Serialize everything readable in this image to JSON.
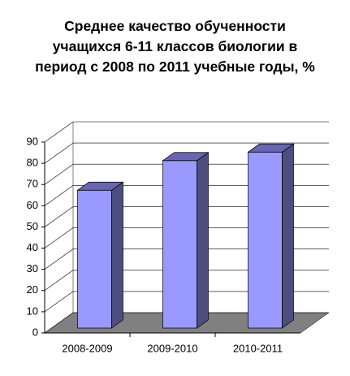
{
  "chart_data": {
    "type": "bar3d",
    "title": "Среднее качество обученности учащихся 6-11 классов биологии в период с 2008 по 2011 учебные годы, %",
    "categories": [
      "2008-2009",
      "2009-2010",
      "2010-2011"
    ],
    "values": [
      65,
      79,
      83
    ],
    "color": "#9999ff",
    "ylim": [
      0,
      90
    ],
    "yticks": [
      0,
      10,
      20,
      30,
      40,
      50,
      60,
      70,
      80,
      90
    ],
    "grid": true
  }
}
